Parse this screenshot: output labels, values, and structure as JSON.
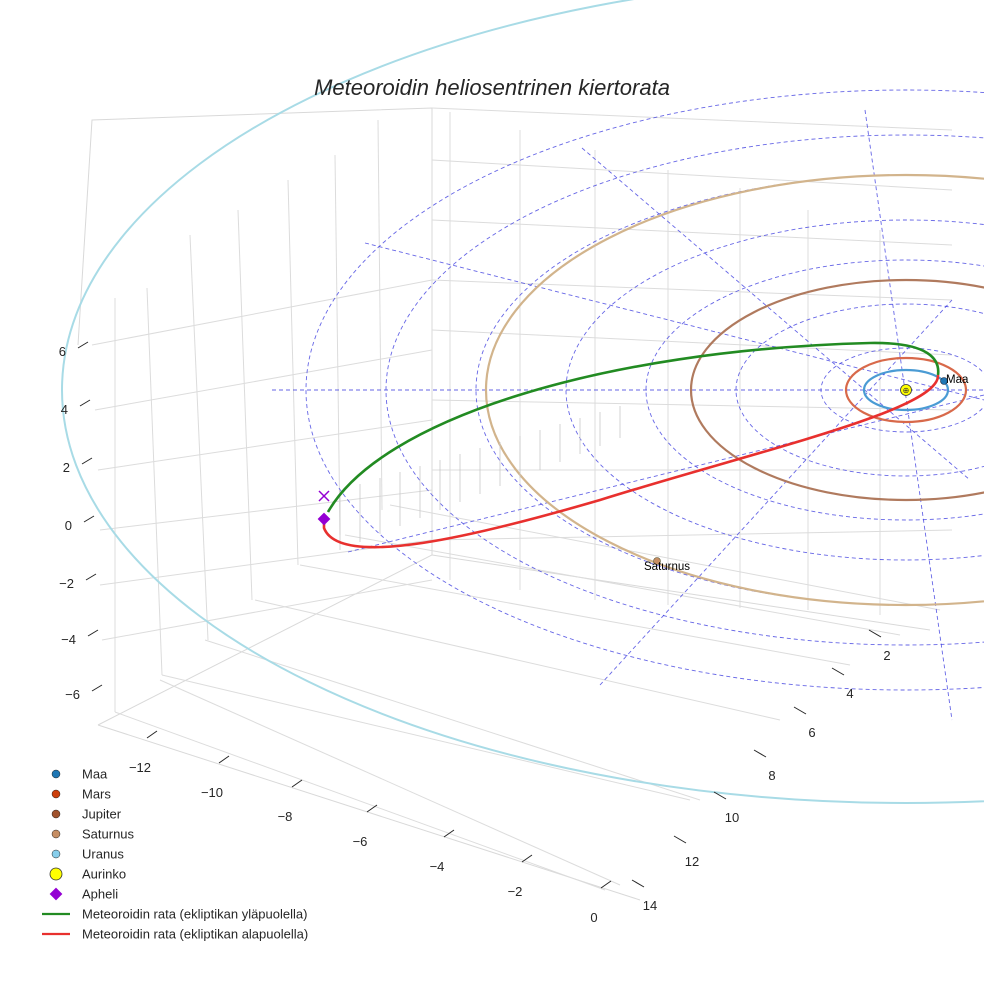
{
  "chart_data": {
    "type": "3d-line",
    "title": "Meteoroidin heliosentrinen kiertorata",
    "axes": {
      "x_ticks": [
        "−12",
        "−10",
        "−8",
        "−6",
        "−4",
        "−2",
        "0"
      ],
      "y_ticks": [
        "2",
        "4",
        "6",
        "8",
        "10",
        "12",
        "14"
      ],
      "z_ticks": [
        "6",
        "4",
        "2",
        "0",
        "−2",
        "−4",
        "−6"
      ],
      "grid": true
    },
    "planets": [
      {
        "name": "Maa",
        "color": "#1f77b4",
        "orbit_color": "#4a9bd4",
        "orbit_radius_au": 1.0
      },
      {
        "name": "Mars",
        "color": "#cc3f0c",
        "orbit_color": "#d8694a",
        "orbit_radius_au": 1.52
      },
      {
        "name": "Jupiter",
        "color": "#a0522d",
        "orbit_color": "#b07a5e",
        "orbit_radius_au": 5.2
      },
      {
        "name": "Saturnus",
        "color": "#c68e64",
        "orbit_color": "#d2b48c",
        "orbit_radius_au": 9.5
      },
      {
        "name": "Uranus",
        "color": "#87ceeb",
        "orbit_color": "#a8dbe6",
        "orbit_radius_au": 19.2
      }
    ],
    "sun": {
      "name": "Aurinko",
      "color": "#ffff00"
    },
    "aphelion": {
      "name": "Apheli",
      "color": "#9400d3"
    },
    "point_labels": [
      "Maa",
      "Saturnus"
    ],
    "orbit_segments": [
      {
        "name": "Meteoroidin rata (ekliptikan yläpuolella)",
        "color": "#228b22"
      },
      {
        "name": "Meteoroidin rata (ekliptikan alapuolella)",
        "color": "#e8302e"
      }
    ],
    "ecliptic_grid_color": "#4040e0"
  }
}
